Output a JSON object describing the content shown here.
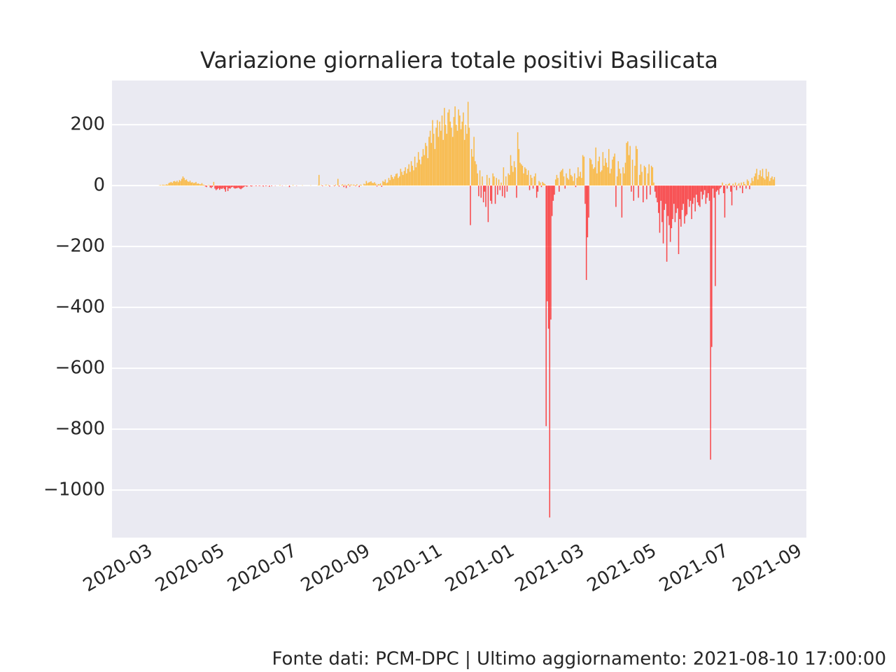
{
  "chart_data": {
    "type": "bar",
    "title": "Variazione giornaliera totale positivi Basilicata",
    "footer": "Fonte dati: PCM-DPC | Ultimo aggiornamento: 2021-08-10 17:00:00",
    "color_positive": "#ffa500",
    "color_negative": "#ff0000",
    "grid": true,
    "xlim": [
      "2020-01-28",
      "2021-09-06"
    ],
    "xticks": [
      "2020-03",
      "2020-05",
      "2020-07",
      "2020-09",
      "2020-11",
      "2021-01",
      "2021-03",
      "2021-05",
      "2021-07",
      "2021-09"
    ],
    "ylim": [
      -1156,
      345
    ],
    "yticks": [
      {
        "value": -1000,
        "label": "−1000"
      },
      {
        "value": -800,
        "label": "−800"
      },
      {
        "value": -600,
        "label": "−600"
      },
      {
        "value": -400,
        "label": "−400"
      },
      {
        "value": -200,
        "label": "−200"
      },
      0,
      200
    ],
    "x": [
      "2020-02-24",
      "2020-02-25",
      "2020-02-26",
      "2020-02-27",
      "2020-02-28",
      "2020-02-29",
      "2020-03-01",
      "2020-03-02",
      "2020-03-03",
      "2020-03-04",
      "2020-03-05",
      "2020-03-06",
      "2020-03-07",
      "2020-03-08",
      "2020-03-09",
      "2020-03-10",
      "2020-03-11",
      "2020-03-12",
      "2020-03-13",
      "2020-03-14",
      "2020-03-15",
      "2020-03-16",
      "2020-03-17",
      "2020-03-18",
      "2020-03-19",
      "2020-03-20",
      "2020-03-21",
      "2020-03-22",
      "2020-03-23",
      "2020-03-24",
      "2020-03-25",
      "2020-03-26",
      "2020-03-27",
      "2020-03-28",
      "2020-03-29",
      "2020-03-30",
      "2020-03-31",
      "2020-04-01",
      "2020-04-02",
      "2020-04-03",
      "2020-04-04",
      "2020-04-05",
      "2020-04-06",
      "2020-04-07",
      "2020-04-08",
      "2020-04-09",
      "2020-04-10",
      "2020-04-11",
      "2020-04-12",
      "2020-04-13",
      "2020-04-14",
      "2020-04-15",
      "2020-04-16",
      "2020-04-17",
      "2020-04-18",
      "2020-04-19",
      "2020-04-20",
      "2020-04-21",
      "2020-04-22",
      "2020-04-23",
      "2020-04-24",
      "2020-04-25",
      "2020-04-26",
      "2020-04-27",
      "2020-04-28",
      "2020-04-29",
      "2020-04-30",
      "2020-05-01",
      "2020-05-02",
      "2020-05-03",
      "2020-05-04",
      "2020-05-05",
      "2020-05-06",
      "2020-05-07",
      "2020-05-08",
      "2020-05-09",
      "2020-05-10",
      "2020-05-11",
      "2020-05-12",
      "2020-05-13",
      "2020-05-14",
      "2020-05-15",
      "2020-05-16",
      "2020-05-17",
      "2020-05-18",
      "2020-05-19",
      "2020-05-20",
      "2020-05-21",
      "2020-05-22",
      "2020-05-23",
      "2020-05-24",
      "2020-05-25",
      "2020-05-26",
      "2020-05-27",
      "2020-05-28",
      "2020-05-29",
      "2020-05-30",
      "2020-05-31",
      "2020-06-01",
      "2020-06-02",
      "2020-06-03",
      "2020-06-04",
      "2020-06-05",
      "2020-06-06",
      "2020-06-07",
      "2020-06-08",
      "2020-06-09",
      "2020-06-10",
      "2020-06-11",
      "2020-06-12",
      "2020-06-13",
      "2020-06-14",
      "2020-06-15",
      "2020-06-16",
      "2020-06-17",
      "2020-06-18",
      "2020-06-19",
      "2020-06-20",
      "2020-06-21",
      "2020-06-22",
      "2020-06-23",
      "2020-06-24",
      "2020-06-25",
      "2020-06-26",
      "2020-06-27",
      "2020-06-28",
      "2020-06-29",
      "2020-06-30",
      "2020-07-01",
      "2020-07-02",
      "2020-07-03",
      "2020-07-04",
      "2020-07-05",
      "2020-07-06",
      "2020-07-07",
      "2020-07-08",
      "2020-07-09",
      "2020-07-10",
      "2020-07-11",
      "2020-07-12",
      "2020-07-13",
      "2020-07-14",
      "2020-07-15",
      "2020-07-16",
      "2020-07-17",
      "2020-07-18",
      "2020-07-19",
      "2020-07-20",
      "2020-07-21",
      "2020-07-22",
      "2020-07-23",
      "2020-07-24",
      "2020-07-25",
      "2020-07-26",
      "2020-07-27",
      "2020-07-28",
      "2020-07-29",
      "2020-07-30",
      "2020-07-31",
      "2020-08-01",
      "2020-08-02",
      "2020-08-03",
      "2020-08-04",
      "2020-08-05",
      "2020-08-06",
      "2020-08-07",
      "2020-08-08",
      "2020-08-09",
      "2020-08-10",
      "2020-08-11",
      "2020-08-12",
      "2020-08-13",
      "2020-08-14",
      "2020-08-15",
      "2020-08-16",
      "2020-08-17",
      "2020-08-18",
      "2020-08-19",
      "2020-08-20",
      "2020-08-21",
      "2020-08-22",
      "2020-08-23",
      "2020-08-24",
      "2020-08-25",
      "2020-08-26",
      "2020-08-27",
      "2020-08-28",
      "2020-08-29",
      "2020-08-30",
      "2020-08-31",
      "2020-09-01",
      "2020-09-02",
      "2020-09-03",
      "2020-09-04",
      "2020-09-05",
      "2020-09-06",
      "2020-09-07",
      "2020-09-08",
      "2020-09-09",
      "2020-09-10",
      "2020-09-11",
      "2020-09-12",
      "2020-09-13",
      "2020-09-14",
      "2020-09-15",
      "2020-09-16",
      "2020-09-17",
      "2020-09-18",
      "2020-09-19",
      "2020-09-20",
      "2020-09-21",
      "2020-09-22",
      "2020-09-23",
      "2020-09-24",
      "2020-09-25",
      "2020-09-26",
      "2020-09-27",
      "2020-09-28",
      "2020-09-29",
      "2020-09-30",
      "2020-10-01",
      "2020-10-02",
      "2020-10-03",
      "2020-10-04",
      "2020-10-05",
      "2020-10-06",
      "2020-10-07",
      "2020-10-08",
      "2020-10-09",
      "2020-10-10",
      "2020-10-11",
      "2020-10-12",
      "2020-10-13",
      "2020-10-14",
      "2020-10-15",
      "2020-10-16",
      "2020-10-17",
      "2020-10-18",
      "2020-10-19",
      "2020-10-20",
      "2020-10-21",
      "2020-10-22",
      "2020-10-23",
      "2020-10-24",
      "2020-10-25",
      "2020-10-26",
      "2020-10-27",
      "2020-10-28",
      "2020-10-29",
      "2020-10-30",
      "2020-10-31",
      "2020-11-01",
      "2020-11-02",
      "2020-11-03",
      "2020-11-04",
      "2020-11-05",
      "2020-11-06",
      "2020-11-07",
      "2020-11-08",
      "2020-11-09",
      "2020-11-10",
      "2020-11-11",
      "2020-11-12",
      "2020-11-13",
      "2020-11-14",
      "2020-11-15",
      "2020-11-16",
      "2020-11-17",
      "2020-11-18",
      "2020-11-19",
      "2020-11-20",
      "2020-11-21",
      "2020-11-22",
      "2020-11-23",
      "2020-11-24",
      "2020-11-25",
      "2020-11-26",
      "2020-11-27",
      "2020-11-28",
      "2020-11-29",
      "2020-11-30",
      "2020-12-01",
      "2020-12-02",
      "2020-12-03",
      "2020-12-04",
      "2020-12-05",
      "2020-12-06",
      "2020-12-07",
      "2020-12-08",
      "2020-12-09",
      "2020-12-10",
      "2020-12-11",
      "2020-12-12",
      "2020-12-13",
      "2020-12-14",
      "2020-12-15",
      "2020-12-16",
      "2020-12-17",
      "2020-12-18",
      "2020-12-19",
      "2020-12-20",
      "2020-12-21",
      "2020-12-22",
      "2020-12-23",
      "2020-12-24",
      "2020-12-25",
      "2020-12-26",
      "2020-12-27",
      "2020-12-28",
      "2020-12-29",
      "2020-12-30",
      "2020-12-31",
      "2021-01-01",
      "2021-01-02",
      "2021-01-03",
      "2021-01-04",
      "2021-01-05",
      "2021-01-06",
      "2021-01-07",
      "2021-01-08",
      "2021-01-09",
      "2021-01-10",
      "2021-01-11",
      "2021-01-12",
      "2021-01-13",
      "2021-01-14",
      "2021-01-15",
      "2021-01-16",
      "2021-01-17",
      "2021-01-18",
      "2021-01-19",
      "2021-01-20",
      "2021-01-21",
      "2021-01-22",
      "2021-01-23",
      "2021-01-24",
      "2021-01-25",
      "2021-01-26",
      "2021-01-27",
      "2021-01-28",
      "2021-01-29",
      "2021-01-30",
      "2021-01-31",
      "2021-02-01",
      "2021-02-02",
      "2021-02-03",
      "2021-02-04",
      "2021-02-05",
      "2021-02-06",
      "2021-02-07",
      "2021-02-08",
      "2021-02-09",
      "2021-02-10",
      "2021-02-11",
      "2021-02-12",
      "2021-02-13",
      "2021-02-14",
      "2021-02-15",
      "2021-02-16",
      "2021-02-17",
      "2021-02-18",
      "2021-02-19",
      "2021-02-20",
      "2021-02-21",
      "2021-02-22",
      "2021-02-23",
      "2021-02-24",
      "2021-02-25",
      "2021-02-26",
      "2021-02-27",
      "2021-02-28",
      "2021-03-01",
      "2021-03-02",
      "2021-03-03",
      "2021-03-04",
      "2021-03-05",
      "2021-03-06",
      "2021-03-07",
      "2021-03-08",
      "2021-03-09",
      "2021-03-10",
      "2021-03-11",
      "2021-03-12",
      "2021-03-13",
      "2021-03-14",
      "2021-03-15",
      "2021-03-16",
      "2021-03-17",
      "2021-03-18",
      "2021-03-19",
      "2021-03-20",
      "2021-03-21",
      "2021-03-22",
      "2021-03-23",
      "2021-03-24",
      "2021-03-25",
      "2021-03-26",
      "2021-03-27",
      "2021-03-28",
      "2021-03-29",
      "2021-03-30",
      "2021-03-31",
      "2021-04-01",
      "2021-04-02",
      "2021-04-03",
      "2021-04-04",
      "2021-04-05",
      "2021-04-06",
      "2021-04-07",
      "2021-04-08",
      "2021-04-09",
      "2021-04-10",
      "2021-04-11",
      "2021-04-12",
      "2021-04-13",
      "2021-04-14",
      "2021-04-15",
      "2021-04-16",
      "2021-04-17",
      "2021-04-18",
      "2021-04-19",
      "2021-04-20",
      "2021-04-21",
      "2021-04-22",
      "2021-04-23",
      "2021-04-24",
      "2021-04-25",
      "2021-04-26",
      "2021-04-27",
      "2021-04-28",
      "2021-04-29",
      "2021-04-30",
      "2021-05-01",
      "2021-05-02",
      "2021-05-03",
      "2021-05-04",
      "2021-05-05",
      "2021-05-06",
      "2021-05-07",
      "2021-05-08",
      "2021-05-09",
      "2021-05-10",
      "2021-05-11",
      "2021-05-12",
      "2021-05-13",
      "2021-05-14",
      "2021-05-15",
      "2021-05-16",
      "2021-05-17",
      "2021-05-18",
      "2021-05-19",
      "2021-05-20",
      "2021-05-21",
      "2021-05-22",
      "2021-05-23",
      "2021-05-24",
      "2021-05-25",
      "2021-05-26",
      "2021-05-27",
      "2021-05-28",
      "2021-05-29",
      "2021-05-30",
      "2021-05-31",
      "2021-06-01",
      "2021-06-02",
      "2021-06-03",
      "2021-06-04",
      "2021-06-05",
      "2021-06-06",
      "2021-06-07",
      "2021-06-08",
      "2021-06-09",
      "2021-06-10",
      "2021-06-11",
      "2021-06-12",
      "2021-06-13",
      "2021-06-14",
      "2021-06-15",
      "2021-06-16",
      "2021-06-17",
      "2021-06-18",
      "2021-06-19",
      "2021-06-20",
      "2021-06-21",
      "2021-06-22",
      "2021-06-23",
      "2021-06-24",
      "2021-06-25",
      "2021-06-26",
      "2021-06-27",
      "2021-06-28",
      "2021-06-29",
      "2021-06-30",
      "2021-07-01",
      "2021-07-02",
      "2021-07-03",
      "2021-07-04",
      "2021-07-05",
      "2021-07-06",
      "2021-07-07",
      "2021-07-08",
      "2021-07-09",
      "2021-07-10",
      "2021-07-11",
      "2021-07-12",
      "2021-07-13",
      "2021-07-14",
      "2021-07-15",
      "2021-07-16",
      "2021-07-17",
      "2021-07-18",
      "2021-07-19",
      "2021-07-20",
      "2021-07-21",
      "2021-07-22",
      "2021-07-23",
      "2021-07-24",
      "2021-07-25",
      "2021-07-26",
      "2021-07-27",
      "2021-07-28",
      "2021-07-29",
      "2021-07-30",
      "2021-07-31",
      "2021-08-01",
      "2021-08-02",
      "2021-08-03",
      "2021-08-04",
      "2021-08-05",
      "2021-08-06",
      "2021-08-07",
      "2021-08-08",
      "2021-08-09",
      "2021-08-10"
    ],
    "values": [
      0,
      0,
      0,
      0,
      0,
      0,
      0,
      0,
      0,
      0,
      0,
      0,
      0,
      1,
      2,
      1,
      3,
      2,
      2,
      4,
      3,
      8,
      10,
      12,
      9,
      14,
      15,
      12,
      16,
      11,
      18,
      15,
      22,
      30,
      25,
      18,
      20,
      14,
      12,
      16,
      10,
      11,
      8,
      9,
      12,
      6,
      7,
      5,
      4,
      8,
      3,
      2,
      -3,
      -5,
      1,
      2,
      -6,
      -8,
      -4,
      12,
      -10,
      -15,
      -12,
      -9,
      -14,
      -10,
      -11,
      -8,
      -12,
      -20,
      -5,
      -18,
      -9,
      -10,
      -6,
      -4,
      -8,
      -10,
      -9,
      -8,
      -7,
      -10,
      -12,
      -9,
      -6,
      -3,
      -2,
      -4,
      -1,
      0,
      -2,
      -3,
      -1,
      0,
      -1,
      -2,
      0,
      -1,
      -2,
      0,
      -1,
      -3,
      0,
      -2,
      -1,
      0,
      -4,
      0,
      -2,
      0,
      0,
      -1,
      0,
      0,
      0,
      2,
      0,
      -1,
      0,
      0,
      1,
      0,
      0,
      -5,
      0,
      0,
      2,
      0,
      0,
      -1,
      0,
      0,
      0,
      0,
      1,
      0,
      0,
      0,
      0,
      0,
      0,
      1,
      0,
      0,
      0,
      0,
      0,
      1,
      35,
      0,
      2,
      -2,
      0,
      1,
      3,
      0,
      2,
      -3,
      0,
      0,
      1,
      -2,
      3,
      0,
      22,
      -3,
      0,
      2,
      4,
      -5,
      3,
      -8,
      2,
      5,
      -3,
      4,
      1,
      3,
      2,
      -2,
      4,
      0,
      -5,
      3,
      2,
      0,
      6,
      4,
      15,
      8,
      10,
      12,
      14,
      9,
      8,
      11,
      6,
      -3,
      5,
      4,
      7,
      -4,
      15,
      12,
      20,
      8,
      10,
      25,
      18,
      35,
      28,
      22,
      30,
      38,
      40,
      25,
      30,
      55,
      45,
      35,
      48,
      60,
      40,
      55,
      70,
      45,
      80,
      65,
      50,
      95,
      60,
      75,
      110,
      85,
      70,
      95,
      120,
      100,
      140,
      130,
      90,
      160,
      180,
      140,
      215,
      170,
      120,
      190,
      215,
      160,
      210,
      180,
      230,
      150,
      255,
      200,
      170,
      240,
      250,
      210,
      190,
      160,
      225,
      260,
      200,
      180,
      250,
      230,
      185,
      210,
      240,
      150,
      200,
      170,
      275,
      190,
      -130,
      120,
      95,
      160,
      80,
      70,
      40,
      -35,
      50,
      -40,
      30,
      -55,
      -20,
      -70,
      35,
      -120,
      25,
      -50,
      -60,
      40,
      30,
      -60,
      25,
      -30,
      20,
      -15,
      10,
      -35,
      60,
      -40,
      30,
      -20,
      40,
      35,
      100,
      65,
      45,
      80,
      60,
      -40,
      175,
      120,
      75,
      70,
      65,
      40,
      60,
      55,
      35,
      50,
      -15,
      35,
      25,
      -10,
      30,
      40,
      -40,
      -20,
      15,
      10,
      -5,
      12,
      8,
      5,
      -790,
      -380,
      -470,
      -1090,
      -440,
      -100,
      -50,
      -30,
      20,
      35,
      25,
      -20,
      45,
      50,
      55,
      30,
      -10,
      40,
      25,
      20,
      55,
      35,
      30,
      15,
      40,
      -5,
      25,
      60,
      30,
      45,
      25,
      100,
      95,
      -60,
      -310,
      -170,
      -105,
      90,
      85,
      70,
      55,
      60,
      125,
      40,
      80,
      95,
      45,
      50,
      110,
      65,
      90,
      75,
      60,
      120,
      40,
      55,
      85,
      95,
      105,
      -70,
      30,
      80,
      55,
      40,
      -105,
      60,
      40,
      75,
      140,
      145,
      100,
      130,
      -20,
      85,
      -50,
      65,
      130,
      120,
      -40,
      35,
      70,
      45,
      -55,
      65,
      60,
      -45,
      40,
      70,
      -30,
      65,
      60,
      10,
      -20,
      -40,
      -55,
      -90,
      -155,
      -50,
      -120,
      -190,
      -80,
      -60,
      -250,
      -100,
      -130,
      -185,
      -140,
      -110,
      -60,
      -120,
      -90,
      -75,
      -225,
      -110,
      -135,
      -80,
      -60,
      -125,
      -100,
      -95,
      -45,
      -70,
      -50,
      -110,
      -60,
      -40,
      -85,
      -30,
      -55,
      -65,
      -70,
      -20,
      -45,
      -30,
      -15,
      -60,
      -40,
      -25,
      -50,
      -900,
      -530,
      -10,
      -40,
      -330,
      -20,
      -15,
      -30,
      -10,
      -5,
      10,
      -25,
      -105,
      5,
      -10,
      5,
      8,
      -20,
      -65,
      6,
      -5,
      10,
      -15,
      3,
      8,
      -8,
      10,
      -25,
      12,
      5,
      -10,
      20,
      15,
      -12,
      8,
      25,
      15,
      30,
      40,
      55,
      20,
      35,
      50,
      30,
      55,
      25,
      20,
      55,
      30,
      45,
      15,
      25,
      30,
      20,
      28
    ]
  }
}
